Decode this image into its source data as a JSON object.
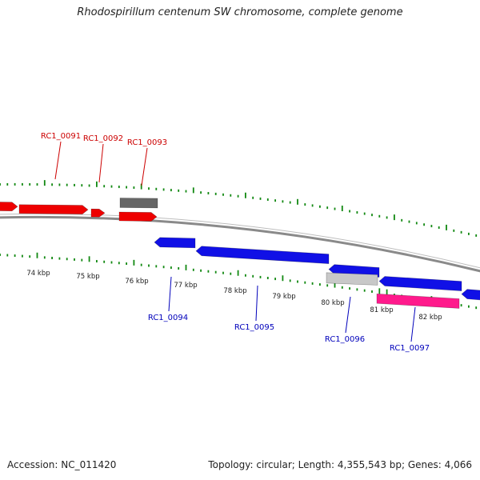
{
  "title": "Rhodospirillum centenum SW chromosome, complete genome",
  "footer": {
    "accession": "Accession: NC_011420",
    "summary": "Topology: circular; Length: 4,355,543 bp; Genes: 4,066"
  },
  "colors": {
    "forward_gene": "#ee0000",
    "reverse_gene": "#1010e6",
    "pseudo_gene": "#666666",
    "rna_gene": "#ff1a8c",
    "other_feature": "#c8c8c8",
    "ticks": "#118811",
    "backbone": "#8a8a8a",
    "forward_label": "#cc0000",
    "reverse_label": "#0000bb"
  },
  "scale_labels": [
    "74 kbp",
    "75 kbp",
    "76 kbp",
    "77 kbp",
    "78 kbp",
    "79 kbp",
    "80 kbp",
    "81 kbp",
    "82 kbp"
  ],
  "genes": [
    {
      "label": "RC1_0091",
      "strand": "+"
    },
    {
      "label": "RC1_0092",
      "strand": "+"
    },
    {
      "label": "RC1_0093",
      "strand": "+"
    },
    {
      "label": "RC1_0094",
      "strand": "-"
    },
    {
      "label": "RC1_0095",
      "strand": "-"
    },
    {
      "label": "RC1_0096",
      "strand": "-"
    },
    {
      "label": "RC1_0097",
      "strand": "-"
    }
  ]
}
